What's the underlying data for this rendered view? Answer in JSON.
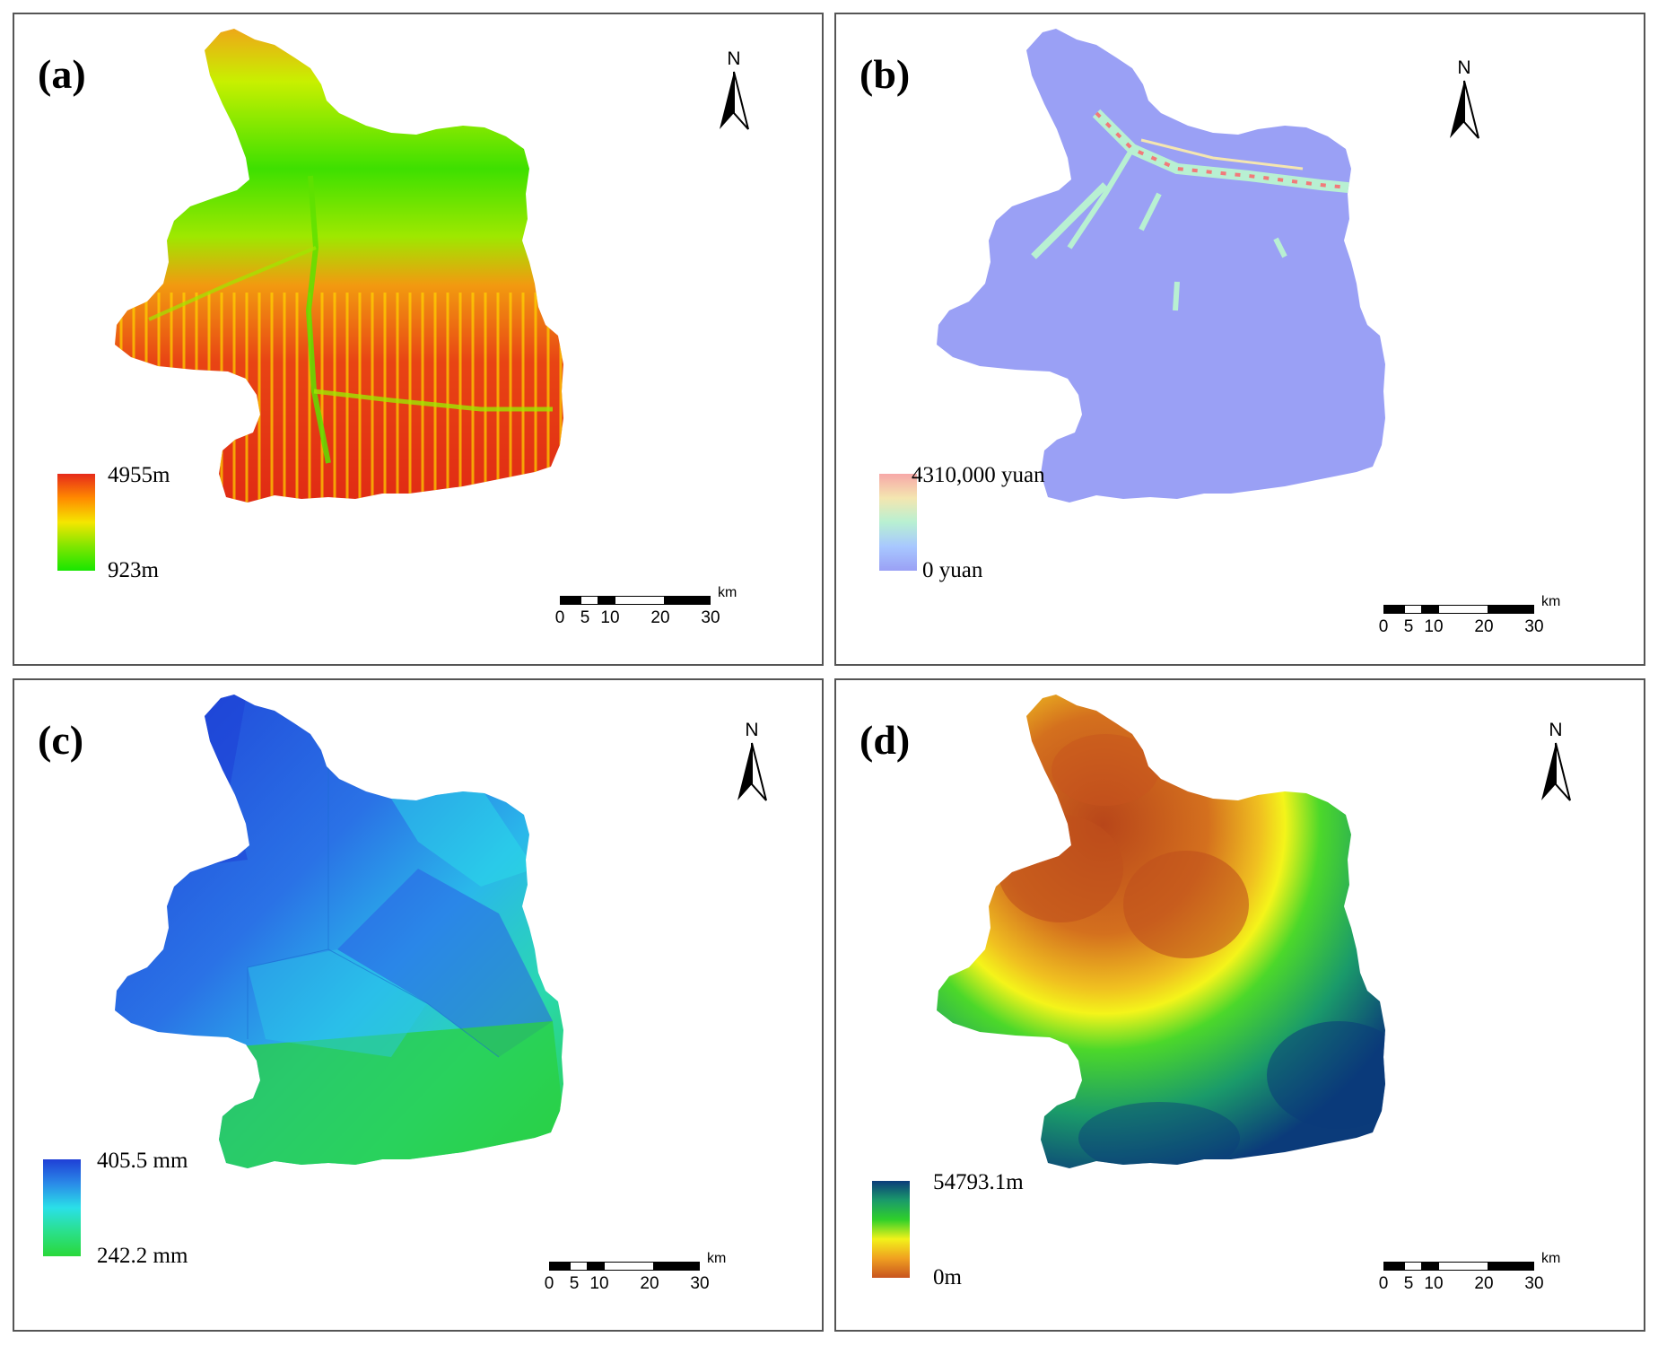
{
  "panels": [
    {
      "id": "a",
      "label": "(a)",
      "legend": {
        "max": "4955m",
        "min": "923m",
        "colors": [
          "#e62a1a",
          "#ff8a00",
          "#f5e600",
          "#7fe600",
          "#18e600"
        ]
      }
    },
    {
      "id": "b",
      "label": "(b)",
      "legend": {
        "max": "4310,000 yuan",
        "min": "0 yuan",
        "colors": [
          "#f7a8a8",
          "#f4e6b0",
          "#b8f0d2",
          "#a8c8ff",
          "#9aa0f5"
        ]
      }
    },
    {
      "id": "c",
      "label": "(c)",
      "legend": {
        "max": "405.5 mm",
        "min": "242.2 mm",
        "colors": [
          "#1f3fd6",
          "#2a8ae8",
          "#2ae0e8",
          "#2ae08a",
          "#2ad83a"
        ]
      }
    },
    {
      "id": "d",
      "label": "(d)",
      "legend": {
        "max": "54793.1m",
        "min": "0m",
        "colors": [
          "#0b3b7a",
          "#1a9a6a",
          "#2fd02a",
          "#f2f21a",
          "#f0a020",
          "#c8541e"
        ]
      }
    }
  ],
  "north_arrow": {
    "letter": "N"
  },
  "scalebar": {
    "ticks": [
      "0",
      "5",
      "10",
      "20",
      "30"
    ],
    "unit": "km"
  }
}
